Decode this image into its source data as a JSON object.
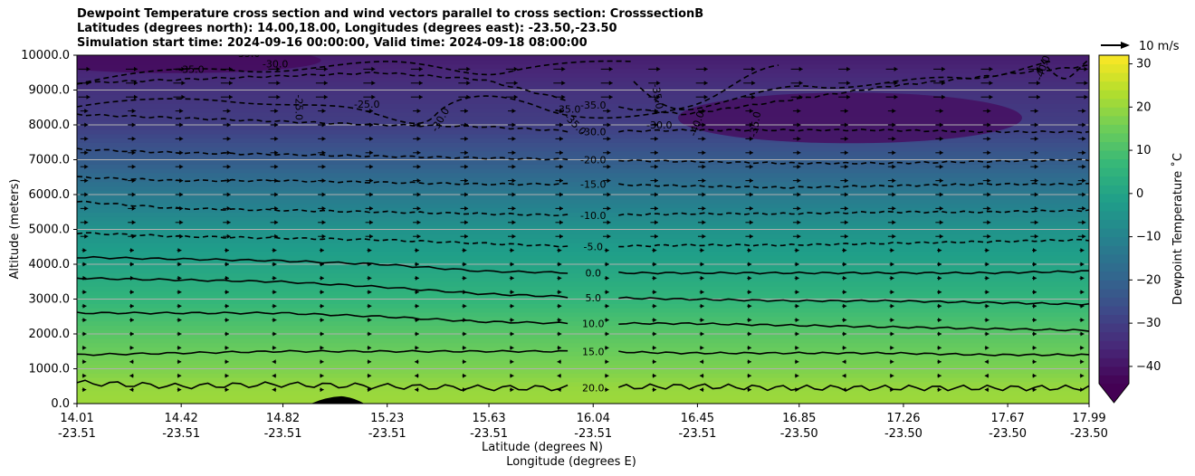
{
  "title_lines": [
    "Dewpoint Temperature cross section and wind vectors parallel to cross section: CrosssectionB",
    "Latitudes (degrees north): 14.00,18.00, Longitudes (degrees east): -23.50,-23.50",
    "Simulation start time: 2024-09-16 00:00:00, Valid time: 2024-09-18 08:00:00"
  ],
  "chart_data": {
    "type": "heatmap",
    "ylabel": "Altitude (meters)",
    "xlabel_line1": "Latitude (degrees N)",
    "xlabel_line2": "Longitude (degrees E)",
    "xlim": [
      14.01,
      17.99
    ],
    "ylim": [
      0,
      10000
    ],
    "yticks": [
      0,
      1000,
      2000,
      3000,
      4000,
      5000,
      6000,
      7000,
      8000,
      9000,
      10000
    ],
    "ytick_labels": [
      "0.0",
      "1000.0",
      "2000.0",
      "3000.0",
      "4000.0",
      "5000.0",
      "6000.0",
      "7000.0",
      "8000.0",
      "9000.0",
      "10000.0"
    ],
    "xticks": [
      {
        "lat": "14.01",
        "lon": "-23.51"
      },
      {
        "lat": "14.42",
        "lon": "-23.51"
      },
      {
        "lat": "14.82",
        "lon": "-23.51"
      },
      {
        "lat": "15.23",
        "lon": "-23.51"
      },
      {
        "lat": "15.63",
        "lon": "-23.51"
      },
      {
        "lat": "16.04",
        "lon": "-23.51"
      },
      {
        "lat": "16.45",
        "lon": "-23.51"
      },
      {
        "lat": "16.85",
        "lon": "-23.50"
      },
      {
        "lat": "17.26",
        "lon": "-23.50"
      },
      {
        "lat": "17.67",
        "lon": "-23.50"
      },
      {
        "lat": "17.99",
        "lon": "-23.50"
      }
    ],
    "grid": "horizontal",
    "colorbar": {
      "label": "Dewpoint Temperature ˚C",
      "range": [
        -44,
        32
      ],
      "ticks": [
        -40,
        -30,
        -20,
        -10,
        0,
        10,
        20,
        30
      ],
      "tick_labels": [
        "−40",
        "−30",
        "−20",
        "−10",
        "0",
        "10",
        "20",
        "30"
      ],
      "colormap": "viridis",
      "extend": "min"
    },
    "quiver_key": "10 m/s",
    "contours": [
      {
        "value": 20,
        "label": "20.0",
        "style": "solid",
        "altitudes": [
          600,
          500,
          550,
          500,
          450,
          450,
          500,
          450,
          450,
          450,
          450
        ]
      },
      {
        "value": 15,
        "label": "15.0",
        "style": "solid",
        "altitudes": [
          1400,
          1450,
          1500,
          1500,
          1500,
          1500,
          1450,
          1450,
          1450,
          1400,
          1400
        ]
      },
      {
        "value": 10,
        "label": "10.0",
        "style": "solid",
        "altitudes": [
          2600,
          2600,
          2600,
          2500,
          2350,
          2300,
          2300,
          2250,
          2200,
          2150,
          2100
        ]
      },
      {
        "value": 5,
        "label": "5.0",
        "style": "solid",
        "altitudes": [
          3600,
          3550,
          3500,
          3350,
          3150,
          3050,
          3000,
          2950,
          2950,
          2900,
          2850
        ]
      },
      {
        "value": 0,
        "label": "0.0",
        "style": "solid",
        "altitudes": [
          4200,
          4150,
          4100,
          4000,
          3800,
          3750,
          3750,
          3750,
          3750,
          3750,
          3800
        ]
      },
      {
        "value": -5,
        "label": "-5.0",
        "style": "dashed",
        "altitudes": [
          4900,
          4800,
          4750,
          4700,
          4600,
          4500,
          4550,
          4550,
          4600,
          4650,
          4700
        ]
      },
      {
        "value": -10,
        "label": "-10.0",
        "style": "dashed",
        "altitudes": [
          5800,
          5600,
          5550,
          5500,
          5450,
          5400,
          5450,
          5450,
          5500,
          5500,
          5550
        ]
      },
      {
        "value": -15,
        "label": "-15.0",
        "style": "dashed",
        "altitudes": [
          6500,
          6400,
          6400,
          6350,
          6300,
          6300,
          6250,
          6200,
          6250,
          6300,
          6300
        ]
      },
      {
        "value": -20,
        "label": "-20.0",
        "style": "dashed",
        "altitudes": [
          7300,
          7200,
          7150,
          7100,
          7050,
          7000,
          6950,
          6900,
          6900,
          6950,
          7000
        ]
      },
      {
        "value": -30,
        "label": "-30.0",
        "style": "dashed",
        "altitudes": [
          8300,
          8200,
          8100,
          8000,
          7950,
          7800,
          7850,
          7850,
          7850,
          7800,
          7800
        ]
      },
      {
        "value": -35,
        "label": "-35.0",
        "style": "dashed",
        "altitudes": [
          9200,
          9300,
          9400,
          9500,
          9300,
          8600,
          8300,
          8700,
          9100,
          9400,
          9700
        ]
      }
    ],
    "extra_contour_labels": [
      "-35.0",
      "-30.0",
      "-35.0",
      "-25.0",
      "-25.0",
      "-30.0",
      "-35.0",
      "-35.0",
      "-30.0",
      "-35.0",
      "-40.0",
      "-35.0",
      "-40.0"
    ],
    "dewpoint_profile": {
      "altitudes": [
        0,
        500,
        1000,
        2000,
        3000,
        4000,
        5000,
        6000,
        7000,
        8000,
        9000,
        10000
      ],
      "values": [
        21,
        20,
        17,
        12,
        6,
        0,
        -5,
        -13,
        -22,
        -30,
        -33,
        -38
      ]
    },
    "terrain": {
      "lat_start": 14.93,
      "lat_peak": 15.05,
      "lat_end": 15.14,
      "peak_altitude": 210
    }
  }
}
